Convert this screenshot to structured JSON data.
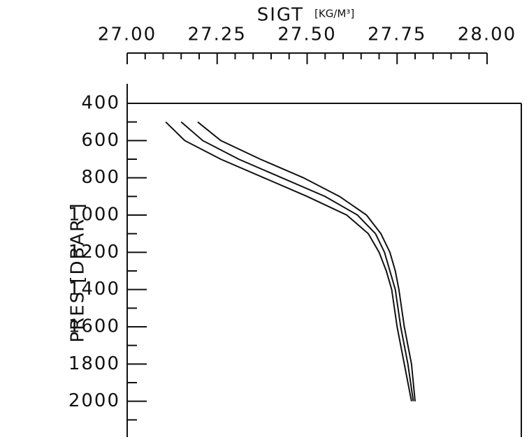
{
  "chart_data": {
    "type": "line",
    "xlabel": "SIGT",
    "xunit": "[KG/M³]",
    "ylabel": "PRES [DBAR      ]",
    "y": [
      500,
      600,
      700,
      800,
      900,
      1000,
      1100,
      1200,
      1300,
      1400,
      1600,
      1800,
      2000
    ],
    "series": [
      {
        "color": "#111111",
        "values": [
          27.107,
          27.16,
          27.26,
          27.38,
          27.5,
          27.61,
          27.67,
          27.7,
          27.72,
          27.735,
          27.75,
          27.77,
          27.79
        ]
      },
      {
        "color": "#111111",
        "values": [
          27.15,
          27.21,
          27.31,
          27.43,
          27.55,
          27.64,
          27.69,
          27.715,
          27.73,
          27.745,
          27.76,
          27.78,
          27.795
        ]
      },
      {
        "color": "#111111",
        "values": [
          27.196,
          27.26,
          27.37,
          27.49,
          27.59,
          27.665,
          27.705,
          27.73,
          27.745,
          27.755,
          27.77,
          27.79,
          27.8
        ]
      }
    ],
    "xlim": [
      27,
      28
    ],
    "xticks": [
      {
        "value": 27,
        "label": "27.00"
      },
      {
        "value": 27.25,
        "label": "27.25"
      },
      {
        "value": 27.5,
        "label": "27.50"
      },
      {
        "value": 27.75,
        "label": "27.75"
      },
      {
        "value": 28,
        "label": "28.00"
      }
    ],
    "xminorticks": [
      27.05,
      27.1,
      27.15,
      27.2,
      27.3,
      27.35,
      27.4,
      27.45,
      27.55,
      27.6,
      27.65,
      27.7,
      27.8,
      27.85,
      27.9,
      27.95
    ],
    "ylim": [
      400,
      2200
    ],
    "yticks": [
      400,
      600,
      800,
      1000,
      1200,
      1400,
      1600,
      1800,
      2000
    ],
    "yminorticks": [
      500,
      700,
      900,
      1100,
      1300,
      1500,
      1700,
      1900,
      2100
    ],
    "y_inverted": true
  }
}
